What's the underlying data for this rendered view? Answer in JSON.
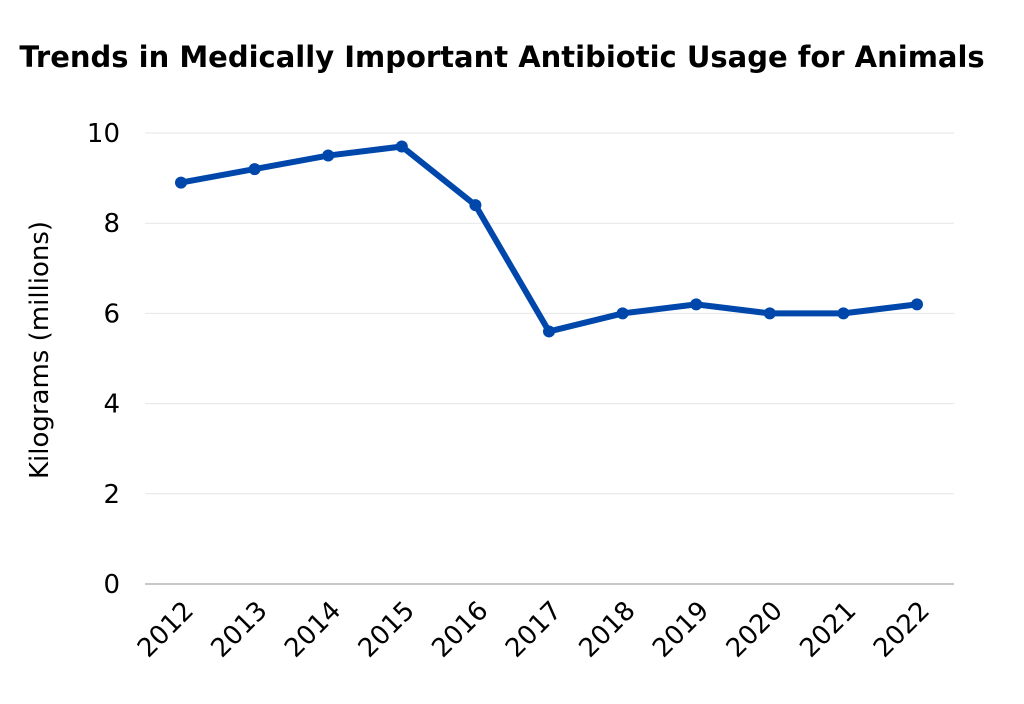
{
  "chart_data": {
    "type": "line",
    "title": "Trends in Medically Important Antibiotic Usage for Animals",
    "xlabel": "",
    "ylabel": "Kilograms (millions)",
    "categories": [
      "2012",
      "2013",
      "2014",
      "2015",
      "2016",
      "2017",
      "2018",
      "2019",
      "2020",
      "2021",
      "2022"
    ],
    "series": [
      {
        "values": [
          8.9,
          9.2,
          9.5,
          9.7,
          8.4,
          5.6,
          6.0,
          6.2,
          6.0,
          6.0,
          6.2
        ],
        "color": "#0047AB"
      }
    ],
    "yticks": [
      "0",
      "2",
      "4",
      "6",
      "8",
      "10"
    ],
    "ylim": [
      0,
      10
    ],
    "grid": true,
    "legend": "none"
  }
}
